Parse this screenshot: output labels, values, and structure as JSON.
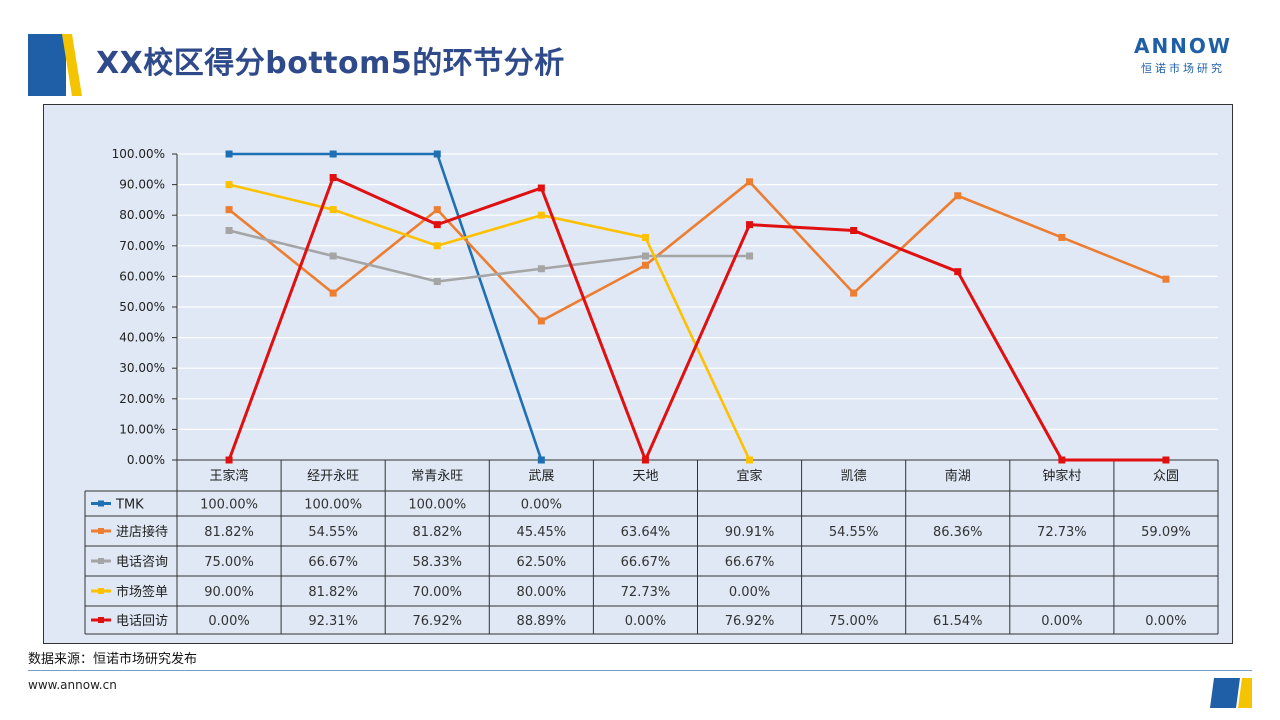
{
  "header": {
    "title": "XX校区得分bottom5的环节分析",
    "brand_name": "ANNOW",
    "brand_sub": "恒诺市场研究"
  },
  "footer": {
    "source": "数据来源：恒诺市场研究发布",
    "url": "www.annow.cn"
  },
  "colors": {
    "title": "#2f4a8a",
    "chart_bg": "#dfe8f4",
    "accent_blue": "#1f5fa8",
    "accent_yellow": "#f5c400"
  },
  "chart_data": {
    "type": "line",
    "title": "",
    "xlabel": "",
    "ylabel": "",
    "ylim": [
      0,
      100
    ],
    "yticks": [
      "0.00%",
      "10.00%",
      "20.00%",
      "30.00%",
      "40.00%",
      "50.00%",
      "60.00%",
      "70.00%",
      "80.00%",
      "90.00%",
      "100.00%"
    ],
    "grid": true,
    "legend": "data-table",
    "categories": [
      "王家湾",
      "经开永旺",
      "常青永旺",
      "武展",
      "天地",
      "宜家",
      "凯德",
      "南湖",
      "钟家村",
      "众圆"
    ],
    "series": [
      {
        "name": "TMK",
        "color": "#1f6fb5",
        "values": [
          100,
          100,
          100,
          0,
          null,
          null,
          null,
          null,
          null,
          null
        ],
        "labels": [
          "100.00%",
          "100.00%",
          "100.00%",
          "0.00%",
          "",
          "",
          "",
          "",
          "",
          ""
        ]
      },
      {
        "name": "进店接待",
        "color": "#ed7d31",
        "values": [
          81.82,
          54.55,
          81.82,
          45.45,
          63.64,
          90.91,
          54.55,
          86.36,
          72.73,
          59.09
        ],
        "labels": [
          "81.82%",
          "54.55%",
          "81.82%",
          "45.45%",
          "63.64%",
          "90.91%",
          "54.55%",
          "86.36%",
          "72.73%",
          "59.09%"
        ]
      },
      {
        "name": "电话咨询",
        "color": "#a5a5a5",
        "values": [
          75,
          66.67,
          58.33,
          62.5,
          66.67,
          66.67,
          null,
          null,
          null,
          null
        ],
        "labels": [
          "75.00%",
          "66.67%",
          "58.33%",
          "62.50%",
          "66.67%",
          "66.67%",
          "",
          "",
          "",
          ""
        ]
      },
      {
        "name": "市场签单",
        "color": "#ffc000",
        "values": [
          90,
          81.82,
          70,
          80,
          72.73,
          0,
          null,
          null,
          null,
          null
        ],
        "labels": [
          "90.00%",
          "81.82%",
          "70.00%",
          "80.00%",
          "72.73%",
          "0.00%",
          "",
          "",
          "",
          ""
        ]
      },
      {
        "name": "电话回访",
        "color": "#e01010",
        "values": [
          0,
          92.31,
          76.92,
          88.89,
          0,
          76.92,
          75,
          61.54,
          0,
          0
        ],
        "labels": [
          "0.00%",
          "92.31%",
          "76.92%",
          "88.89%",
          "0.00%",
          "76.92%",
          "75.00%",
          "61.54%",
          "0.00%",
          "0.00%"
        ]
      }
    ]
  }
}
